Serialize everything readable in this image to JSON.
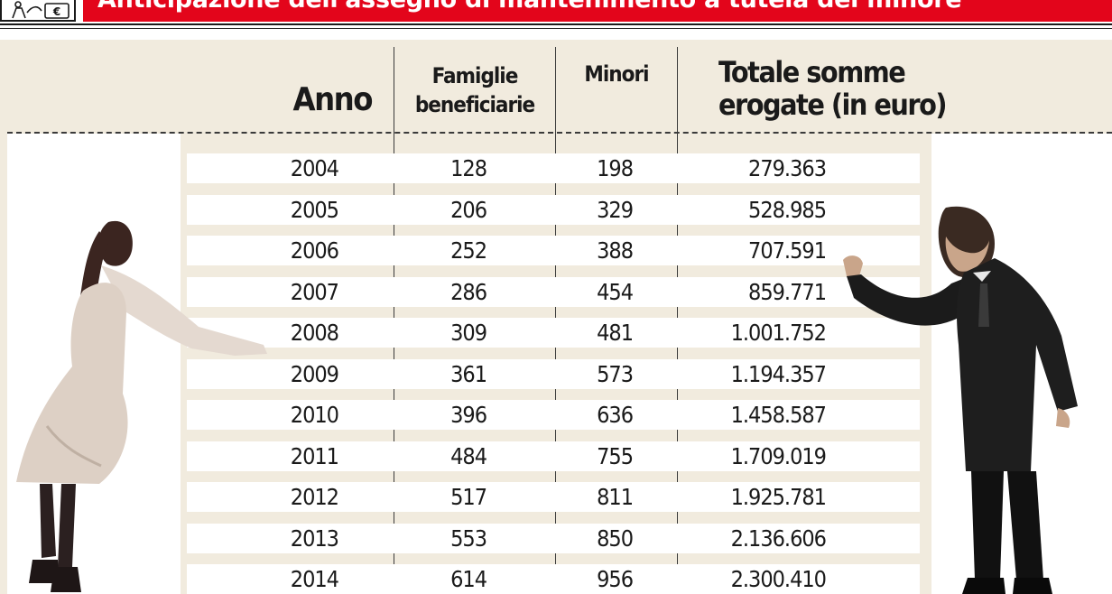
{
  "header": {
    "title": "Anticipazione dell'assegno di mantenimento a tutela del minore",
    "icon": "family-money-icon"
  },
  "columns": {
    "anno": "Anno",
    "famiglie": [
      "Famiglie",
      "beneficiarie"
    ],
    "minori": "Minori",
    "totale": [
      "Totale somme",
      "erogate (in euro)"
    ]
  },
  "chart_data": {
    "type": "table",
    "title": "Anticipazione dell'assegno di mantenimento a tutela del minore",
    "columns": [
      "Anno",
      "Famiglie beneficiarie",
      "Minori",
      "Totale somme erogate (in euro)"
    ],
    "rows": [
      {
        "anno": "2004",
        "famiglie": "128",
        "minori": "198",
        "totale": "279.363"
      },
      {
        "anno": "2005",
        "famiglie": "206",
        "minori": "329",
        "totale": "528.985"
      },
      {
        "anno": "2006",
        "famiglie": "252",
        "minori": "388",
        "totale": "707.591"
      },
      {
        "anno": "2007",
        "famiglie": "286",
        "minori": "454",
        "totale": "859.771"
      },
      {
        "anno": "2008",
        "famiglie": "309",
        "minori": "481",
        "totale": "1.001.752"
      },
      {
        "anno": "2009",
        "famiglie": "361",
        "minori": "573",
        "totale": "1.194.357"
      },
      {
        "anno": "2010",
        "famiglie": "396",
        "minori": "636",
        "totale": "1.458.587"
      },
      {
        "anno": "2011",
        "famiglie": "484",
        "minori": "755",
        "totale": "1.709.019"
      },
      {
        "anno": "2012",
        "famiglie": "517",
        "minori": "811",
        "totale": "1.925.781"
      },
      {
        "anno": "2013",
        "famiglie": "553",
        "minori": "850",
        "totale": "2.136.606"
      },
      {
        "anno": "2014",
        "famiglie": "614",
        "minori": "956",
        "totale": "2.300.410"
      }
    ]
  },
  "colors": {
    "banner": "#e3051b",
    "panel": "#f1ebde",
    "text": "#1a1a1a"
  },
  "illustrations": {
    "left": "woman-figure-icon",
    "right": "man-figure-icon"
  }
}
